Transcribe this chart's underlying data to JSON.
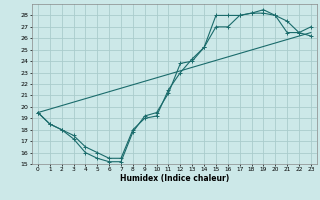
{
  "title": "",
  "xlabel": "Humidex (Indice chaleur)",
  "xlim": [
    -0.5,
    23.5
  ],
  "ylim": [
    15,
    29
  ],
  "yticks": [
    15,
    16,
    17,
    18,
    19,
    20,
    21,
    22,
    23,
    24,
    25,
    26,
    27,
    28
  ],
  "xticks": [
    0,
    1,
    2,
    3,
    4,
    5,
    6,
    7,
    8,
    9,
    10,
    11,
    12,
    13,
    14,
    15,
    16,
    17,
    18,
    19,
    20,
    21,
    22,
    23
  ],
  "background_color": "#cce8e8",
  "grid_color": "#aacccc",
  "line_color": "#1a6b6b",
  "curve1_x": [
    0,
    1,
    2,
    3,
    4,
    5,
    6,
    7,
    8,
    9,
    10,
    11,
    12,
    13,
    14,
    15,
    16,
    17,
    18,
    19,
    20,
    21,
    22,
    23
  ],
  "curve1_y": [
    19.5,
    18.5,
    18.0,
    17.2,
    16.0,
    15.5,
    15.2,
    15.2,
    17.8,
    19.2,
    19.5,
    21.2,
    23.8,
    24.0,
    25.2,
    27.0,
    27.0,
    28.0,
    28.2,
    28.2,
    28.0,
    27.5,
    26.5,
    27.0
  ],
  "curve2_x": [
    0,
    1,
    2,
    3,
    4,
    5,
    6,
    7,
    8,
    9,
    10,
    11,
    12,
    13,
    14,
    15,
    16,
    17,
    18,
    19,
    20,
    21,
    22,
    23
  ],
  "curve2_y": [
    19.5,
    18.5,
    18.0,
    17.5,
    16.5,
    16.0,
    15.5,
    15.5,
    18.0,
    19.0,
    19.2,
    21.5,
    23.0,
    24.2,
    25.2,
    28.0,
    28.0,
    28.0,
    28.2,
    28.5,
    28.0,
    26.5,
    26.5,
    26.2
  ],
  "curve3_x": [
    0,
    23
  ],
  "curve3_y": [
    19.5,
    26.5
  ]
}
